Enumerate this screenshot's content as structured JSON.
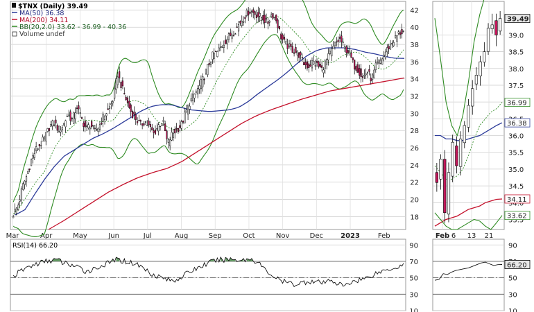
{
  "chart_data": [
    {
      "panel": "main-price",
      "type": "candlestick",
      "legend": {
        "symbol": "$TNX (Daily) 39.49",
        "ma50": "MA(50) 36.38",
        "ma200": "MA(200) 34.11",
        "bb": "BB(20,2.0) 33.62 - 36.99 - 40.36",
        "volume": "Volume undef"
      },
      "y_ticks": [
        18,
        20,
        22,
        24,
        26,
        28,
        30,
        32,
        34,
        36,
        38,
        40,
        42
      ],
      "ylim": [
        16.5,
        43.0
      ],
      "x_ticks": [
        "Mar",
        "Apr",
        "May",
        "Jun",
        "Jul",
        "Aug",
        "Sep",
        "Oct",
        "Nov",
        "Dec",
        "2023",
        "Feb"
      ],
      "close_approx": [
        18.3,
        19.2,
        21.4,
        22.8,
        24.6,
        25.8,
        26.4,
        27.2,
        28.5,
        28.9,
        28.1,
        28.6,
        29.9,
        29.2,
        30.8,
        29.4,
        28.2,
        28.7,
        27.9,
        28.6,
        29.8,
        30.4,
        31.6,
        34.6,
        32.9,
        31.4,
        30.1,
        29.4,
        28.6,
        29.1,
        28.4,
        27.6,
        28.6,
        29.1,
        26.4,
        27.6,
        28.1,
        28.6,
        30.1,
        31.4,
        32.2,
        33.1,
        34.2,
        35.6,
        36.8,
        37.1,
        37.9,
        38.6,
        39.2,
        39.7,
        40.6,
        41.3,
        41.9,
        41.7,
        41.3,
        41.1,
        40.4,
        41.6,
        40.8,
        38.9,
        38.0,
        37.6,
        37.2,
        36.8,
        35.8,
        35.4,
        36.0,
        35.6,
        35.1,
        36.1,
        37.1,
        38.1,
        38.6,
        37.6,
        37.1,
        35.6,
        35.1,
        34.1,
        34.9,
        33.9,
        35.6,
        36.1,
        37.1,
        37.9,
        38.6,
        39.3,
        39.49
      ],
      "ma50_approx": [
        18.2,
        18.8,
        20.6,
        22.3,
        23.8,
        25.0,
        25.7,
        26.4,
        27.1,
        27.6,
        28.2,
        28.9,
        29.6,
        30.3,
        30.8,
        31.0,
        31.0,
        30.7,
        30.4,
        30.3,
        30.2,
        30.3,
        30.4,
        30.7,
        31.4,
        32.3,
        33.1,
        33.9,
        34.8,
        35.8,
        36.7,
        37.3,
        37.6,
        37.6,
        37.6,
        37.4,
        37.1,
        36.9,
        36.6,
        36.4,
        36.38
      ],
      "ma200_approx": [
        16.5,
        17.5,
        18.6,
        19.7,
        20.8,
        21.7,
        22.5,
        23.1,
        23.6,
        24.4,
        25.5,
        26.6,
        27.7,
        28.8,
        29.7,
        30.4,
        31.0,
        31.6,
        32.1,
        32.6,
        32.9,
        33.2,
        33.5,
        33.8,
        34.11
      ],
      "bb_upper": 40.36,
      "bb_middle": 36.99,
      "bb_lower": 33.62
    },
    {
      "panel": "main-rsi",
      "type": "line",
      "label": "RSI(14) 66.20",
      "y_ticks": [
        10,
        30,
        50,
        70,
        90
      ],
      "ylim": [
        10,
        97
      ],
      "overbought": 70,
      "oversold": 30,
      "values_approx": [
        52,
        58,
        63,
        66,
        69,
        71,
        72,
        68,
        66,
        62,
        58,
        60,
        64,
        67,
        72,
        71,
        69,
        67,
        62,
        56,
        52,
        49,
        46,
        50,
        55,
        60,
        64,
        68,
        71,
        72,
        73,
        72,
        72,
        73,
        68,
        58,
        52,
        46,
        44,
        42,
        44,
        46,
        45,
        43,
        48,
        42,
        40,
        46,
        48,
        50,
        55,
        58,
        61,
        63,
        66.2
      ]
    },
    {
      "panel": "zoom-price",
      "type": "candlestick",
      "y_ticks": [
        33.5,
        34.0,
        34.5,
        35.0,
        35.5,
        36.0,
        36.5,
        37.0,
        37.5,
        38.0,
        38.5,
        39.0
      ],
      "ylim": [
        33.2,
        40.0
      ],
      "x_ticks": [
        "Feb",
        "6",
        "13",
        "21"
      ],
      "value_tags": [
        "39.49",
        "36.99",
        "36.38",
        "34.11",
        "33.62"
      ],
      "close_approx": [
        34.6,
        35.3,
        33.7,
        34.9,
        35.8,
        35.1,
        35.9,
        36.3,
        36.9,
        37.4,
        37.8,
        38.2,
        38.5,
        39.2,
        39.3,
        39.0,
        39.49
      ]
    },
    {
      "panel": "zoom-rsi",
      "type": "line",
      "value_tag": "66.20",
      "y_ticks": [
        10,
        30,
        50,
        70,
        90
      ],
      "ylim": [
        10,
        97
      ],
      "values_approx": [
        47,
        48,
        55,
        54,
        57,
        59,
        60,
        61,
        62,
        64,
        66,
        68,
        69,
        67,
        65,
        66,
        66.2
      ]
    }
  ]
}
